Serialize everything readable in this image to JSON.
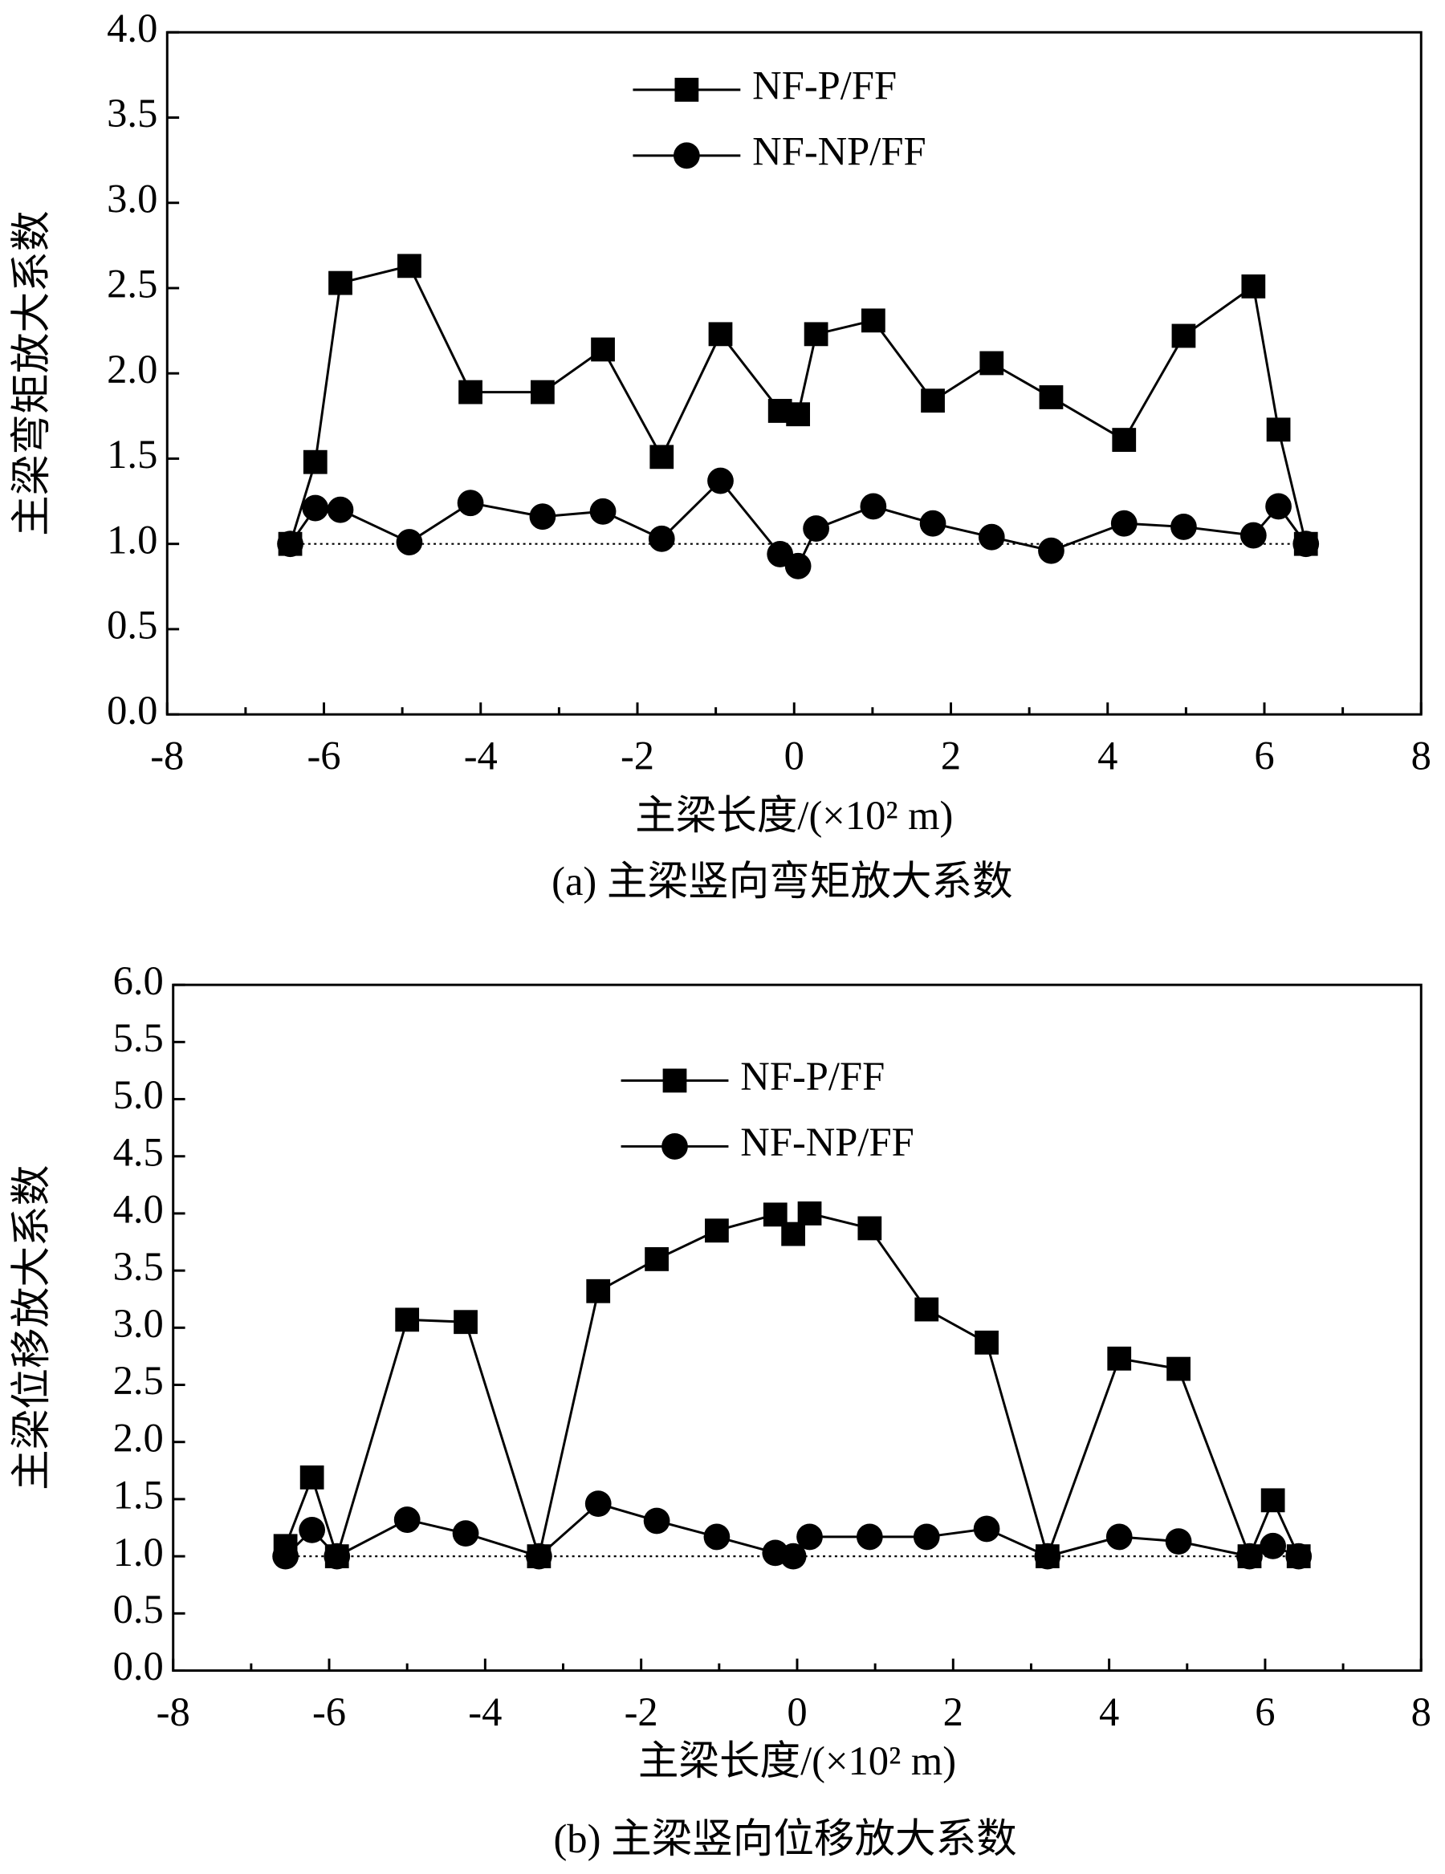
{
  "chart_data": [
    {
      "type": "line",
      "x_label": "主梁长度/(×10² m)",
      "y_label": "主梁弯矩放大系数",
      "caption": "(a) 主梁竖向弯矩放大系数",
      "x": [
        -6.43,
        -6.11,
        -5.79,
        -4.91,
        -4.13,
        -3.21,
        -2.44,
        -1.69,
        -0.94,
        -0.18,
        0.05,
        0.28,
        1.01,
        1.77,
        2.52,
        3.28,
        4.21,
        4.97,
        5.86,
        6.18,
        6.53
      ],
      "series": [
        {
          "name": "NF-P/FF",
          "color": "#000000",
          "marker": "square",
          "values": [
            1.0,
            1.48,
            2.53,
            2.63,
            1.89,
            1.89,
            2.14,
            1.51,
            2.23,
            1.78,
            1.76,
            2.23,
            2.31,
            1.84,
            2.06,
            1.86,
            1.61,
            2.22,
            2.51,
            1.67,
            1.0
          ]
        },
        {
          "name": "NF-NP/FF",
          "color": "#000000",
          "marker": "circle",
          "values": [
            1.0,
            1.21,
            1.2,
            1.01,
            1.24,
            1.16,
            1.19,
            1.03,
            1.37,
            0.94,
            0.87,
            1.09,
            1.22,
            1.12,
            1.04,
            0.96,
            1.12,
            1.1,
            1.05,
            1.22,
            1.0
          ]
        }
      ],
      "reference_line": 1,
      "xlim": [
        -8,
        8
      ],
      "xticks": [
        -8,
        -6,
        -4,
        -2,
        0,
        2,
        4,
        6,
        8
      ],
      "ylim": [
        0,
        4
      ],
      "yticks": [
        {
          "value": 0,
          "label": "0.0"
        },
        {
          "value": 0.5,
          "label": "0.5"
        },
        {
          "value": 1,
          "label": "1.0"
        },
        {
          "value": 1.5,
          "label": "1.5"
        },
        {
          "value": 2,
          "label": "2.0"
        },
        {
          "value": 2.5,
          "label": "2.5"
        },
        {
          "value": 3,
          "label": "3.0"
        },
        {
          "value": 3.5,
          "label": "3.5"
        },
        {
          "value": 4,
          "label": "4.0"
        }
      ]
    },
    {
      "type": "line",
      "x_label": "主梁长度/(×10² m)",
      "y_label": "主梁位移放大系数",
      "caption": "(b) 主梁竖向位移放大系数",
      "x": [
        -6.56,
        -6.22,
        -5.9,
        -5.0,
        -4.25,
        -3.31,
        -2.55,
        -1.8,
        -1.03,
        -0.28,
        -0.05,
        0.16,
        0.93,
        1.66,
        2.43,
        3.21,
        4.13,
        4.89,
        5.8,
        6.1,
        6.43
      ],
      "series": [
        {
          "name": "NF-P/FF",
          "color": "#000000",
          "marker": "square",
          "values": [
            1.09,
            1.69,
            1.0,
            3.07,
            3.05,
            1.0,
            3.32,
            3.6,
            3.85,
            3.99,
            3.82,
            4.0,
            3.87,
            3.16,
            2.87,
            1.0,
            2.73,
            2.64,
            1.0,
            1.49,
            1.0
          ]
        },
        {
          "name": "NF-NP/FF",
          "color": "#000000",
          "marker": "circle",
          "values": [
            1.0,
            1.23,
            1.0,
            1.32,
            1.2,
            1.0,
            1.46,
            1.31,
            1.17,
            1.03,
            1.0,
            1.17,
            1.17,
            1.17,
            1.24,
            1.0,
            1.17,
            1.13,
            1.0,
            1.09,
            1.0
          ]
        }
      ],
      "reference_line": 1,
      "xlim": [
        -8,
        8
      ],
      "xticks": [
        -8,
        -6,
        -4,
        -2,
        0,
        2,
        4,
        6,
        8
      ],
      "ylim": [
        0,
        6
      ],
      "yticks": [
        {
          "value": 0,
          "label": "0.0"
        },
        {
          "value": 0.5,
          "label": "0.5"
        },
        {
          "value": 1,
          "label": "1.0"
        },
        {
          "value": 1.5,
          "label": "1.5"
        },
        {
          "value": 2,
          "label": "2.0"
        },
        {
          "value": 2.5,
          "label": "2.5"
        },
        {
          "value": 3,
          "label": "3.0"
        },
        {
          "value": 3.5,
          "label": "3.5"
        },
        {
          "value": 4,
          "label": "4.0"
        },
        {
          "value": 4.5,
          "label": "4.5"
        },
        {
          "value": 5,
          "label": "5.0"
        },
        {
          "value": 5.5,
          "label": "5.5"
        },
        {
          "value": 6,
          "label": "6.0"
        }
      ]
    }
  ]
}
